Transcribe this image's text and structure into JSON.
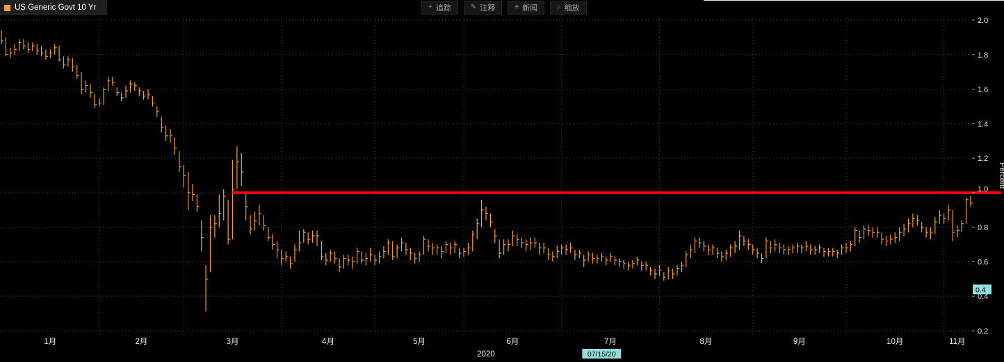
{
  "header": {
    "series_title": "US Generic Govt 10 Yr",
    "series_color": "#f2a23c"
  },
  "toolbar": {
    "items": [
      {
        "name": "track",
        "icon_name": "move-cross-icon",
        "icon": "+",
        "label": "追踪"
      },
      {
        "name": "annotate",
        "icon_name": "pencil-icon",
        "icon": "✎",
        "label": "注释"
      },
      {
        "name": "news",
        "icon_name": "news-lines-icon",
        "icon": "≡",
        "label": "新闻"
      },
      {
        "name": "zoom",
        "icon_name": "magnifier-icon",
        "icon": "⌕",
        "label": "缩放"
      }
    ]
  },
  "chart_data": {
    "type": "bar",
    "subtype": "hlc-ohlc-daily",
    "title": "US Generic Govt 10 Yr",
    "ylabel": "Percent",
    "ylim": [
      0.2,
      2.0
    ],
    "grid": true,
    "y_ticks": [
      "2.0",
      "1.8",
      "1.6",
      "1.4",
      "1.2",
      "1.0",
      "0.8",
      "0.6",
      "0.4",
      "0.2"
    ],
    "x_tick_labels": [
      "1月",
      "2月",
      "3月",
      "4月",
      "5月",
      "6月",
      "7月",
      "8月",
      "9月",
      "10月",
      "11月"
    ],
    "year_label": "2020",
    "month_start_indices": [
      0,
      22,
      41,
      63,
      84,
      104,
      126,
      148,
      169,
      190,
      212
    ],
    "series_color": "#f2a23c",
    "red_line": {
      "value": 1.0,
      "start_index": 52,
      "color": "#ff0000"
    },
    "cursor": {
      "x_index": 135,
      "x_label": "07/15/20",
      "y_value": 0.44,
      "y_label": "0.4",
      "highlight_color": "#95dcdc"
    },
    "bars_hlc": [
      [
        1.94,
        1.86,
        1.88
      ],
      [
        1.9,
        1.79,
        1.8
      ],
      [
        1.84,
        1.78,
        1.81
      ],
      [
        1.86,
        1.8,
        1.83
      ],
      [
        1.89,
        1.82,
        1.87
      ],
      [
        1.89,
        1.83,
        1.85
      ],
      [
        1.87,
        1.81,
        1.83
      ],
      [
        1.87,
        1.82,
        1.85
      ],
      [
        1.86,
        1.8,
        1.82
      ],
      [
        1.85,
        1.79,
        1.81
      ],
      [
        1.83,
        1.77,
        1.79
      ],
      [
        1.83,
        1.78,
        1.81
      ],
      [
        1.86,
        1.8,
        1.84
      ],
      [
        1.85,
        1.76,
        1.77
      ],
      [
        1.79,
        1.72,
        1.74
      ],
      [
        1.79,
        1.73,
        1.77
      ],
      [
        1.78,
        1.7,
        1.73
      ],
      [
        1.74,
        1.66,
        1.68
      ],
      [
        1.7,
        1.57,
        1.6
      ],
      [
        1.65,
        1.58,
        1.62
      ],
      [
        1.63,
        1.55,
        1.58
      ],
      [
        1.57,
        1.49,
        1.51
      ],
      [
        1.55,
        1.5,
        1.52
      ],
      [
        1.61,
        1.51,
        1.6
      ],
      [
        1.67,
        1.59,
        1.65
      ],
      [
        1.67,
        1.62,
        1.64
      ],
      [
        1.61,
        1.56,
        1.58
      ],
      [
        1.58,
        1.53,
        1.55
      ],
      [
        1.62,
        1.55,
        1.59
      ],
      [
        1.65,
        1.58,
        1.63
      ],
      [
        1.64,
        1.59,
        1.62
      ],
      [
        1.61,
        1.56,
        1.59
      ],
      [
        1.59,
        1.54,
        1.56
      ],
      [
        1.6,
        1.54,
        1.57
      ],
      [
        1.56,
        1.5,
        1.52
      ],
      [
        1.5,
        1.44,
        1.47
      ],
      [
        1.44,
        1.35,
        1.38
      ],
      [
        1.39,
        1.3,
        1.33
      ],
      [
        1.37,
        1.29,
        1.33
      ],
      [
        1.32,
        1.22,
        1.26
      ],
      [
        1.24,
        1.12,
        1.15
      ],
      [
        1.16,
        1.03,
        1.1
      ],
      [
        1.12,
        0.9,
        1.0
      ],
      [
        1.05,
        0.95,
        0.99
      ],
      [
        0.99,
        0.89,
        0.92
      ],
      [
        0.84,
        0.66,
        0.74
      ],
      [
        0.58,
        0.31,
        0.5
      ],
      [
        0.87,
        0.54,
        0.8
      ],
      [
        0.87,
        0.74,
        0.82
      ],
      [
        0.99,
        0.8,
        0.88
      ],
      [
        1.02,
        0.84,
        0.98
      ],
      [
        0.96,
        0.7,
        0.73
      ],
      [
        1.19,
        0.73,
        1.02
      ],
      [
        1.27,
        1.02,
        1.18
      ],
      [
        1.23,
        1.04,
        1.12
      ],
      [
        1.01,
        0.84,
        0.92
      ],
      [
        0.87,
        0.76,
        0.79
      ],
      [
        0.89,
        0.78,
        0.84
      ],
      [
        0.93,
        0.81,
        0.88
      ],
      [
        0.87,
        0.78,
        0.81
      ],
      [
        0.8,
        0.72,
        0.74
      ],
      [
        0.76,
        0.67,
        0.7
      ],
      [
        0.72,
        0.62,
        0.67
      ],
      [
        0.67,
        0.58,
        0.62
      ],
      [
        0.66,
        0.6,
        0.63
      ],
      [
        0.63,
        0.56,
        0.59
      ],
      [
        0.7,
        0.6,
        0.67
      ],
      [
        0.78,
        0.66,
        0.71
      ],
      [
        0.79,
        0.71,
        0.77
      ],
      [
        0.77,
        0.7,
        0.73
      ],
      [
        0.78,
        0.71,
        0.75
      ],
      [
        0.78,
        0.69,
        0.75
      ],
      [
        0.72,
        0.61,
        0.63
      ],
      [
        0.65,
        0.58,
        0.61
      ],
      [
        0.67,
        0.6,
        0.65
      ],
      [
        0.66,
        0.59,
        0.62
      ],
      [
        0.62,
        0.54,
        0.57
      ],
      [
        0.64,
        0.56,
        0.62
      ],
      [
        0.64,
        0.58,
        0.61
      ],
      [
        0.63,
        0.56,
        0.6
      ],
      [
        0.68,
        0.59,
        0.66
      ],
      [
        0.66,
        0.59,
        0.61
      ],
      [
        0.65,
        0.58,
        0.62
      ],
      [
        0.68,
        0.6,
        0.64
      ],
      [
        0.64,
        0.58,
        0.61
      ],
      [
        0.66,
        0.59,
        0.63
      ],
      [
        0.69,
        0.62,
        0.66
      ],
      [
        0.73,
        0.64,
        0.71
      ],
      [
        0.72,
        0.61,
        0.63
      ],
      [
        0.7,
        0.62,
        0.68
      ],
      [
        0.74,
        0.66,
        0.71
      ],
      [
        0.71,
        0.64,
        0.67
      ],
      [
        0.68,
        0.61,
        0.65
      ],
      [
        0.65,
        0.59,
        0.62
      ],
      [
        0.66,
        0.6,
        0.64
      ],
      [
        0.75,
        0.64,
        0.73
      ],
      [
        0.73,
        0.66,
        0.69
      ],
      [
        0.71,
        0.64,
        0.68
      ],
      [
        0.7,
        0.64,
        0.68
      ],
      [
        0.69,
        0.62,
        0.66
      ],
      [
        0.72,
        0.65,
        0.7
      ],
      [
        0.71,
        0.64,
        0.68
      ],
      [
        0.72,
        0.65,
        0.7
      ],
      [
        0.68,
        0.62,
        0.65
      ],
      [
        0.68,
        0.63,
        0.66
      ],
      [
        0.71,
        0.64,
        0.68
      ],
      [
        0.78,
        0.66,
        0.76
      ],
      [
        0.85,
        0.73,
        0.82
      ],
      [
        0.96,
        0.8,
        0.9
      ],
      [
        0.92,
        0.84,
        0.88
      ],
      [
        0.88,
        0.8,
        0.83
      ],
      [
        0.79,
        0.71,
        0.75
      ],
      [
        0.73,
        0.62,
        0.65
      ],
      [
        0.73,
        0.64,
        0.7
      ],
      [
        0.73,
        0.66,
        0.7
      ],
      [
        0.78,
        0.69,
        0.75
      ],
      [
        0.76,
        0.69,
        0.73
      ],
      [
        0.74,
        0.68,
        0.71
      ],
      [
        0.73,
        0.66,
        0.7
      ],
      [
        0.74,
        0.67,
        0.71
      ],
      [
        0.74,
        0.68,
        0.71
      ],
      [
        0.71,
        0.64,
        0.68
      ],
      [
        0.71,
        0.65,
        0.68
      ],
      [
        0.68,
        0.61,
        0.64
      ],
      [
        0.66,
        0.6,
        0.63
      ],
      [
        0.69,
        0.62,
        0.66
      ],
      [
        0.7,
        0.64,
        0.68
      ],
      [
        0.7,
        0.64,
        0.67
      ],
      [
        0.71,
        0.65,
        0.68
      ],
      [
        0.67,
        0.61,
        0.64
      ],
      [
        0.67,
        0.62,
        0.65
      ],
      [
        0.64,
        0.57,
        0.61
      ],
      [
        0.66,
        0.6,
        0.64
      ],
      [
        0.65,
        0.59,
        0.62
      ],
      [
        0.64,
        0.59,
        0.62
      ],
      [
        0.65,
        0.6,
        0.63
      ],
      [
        0.63,
        0.58,
        0.61
      ],
      [
        0.65,
        0.6,
        0.63
      ],
      [
        0.63,
        0.58,
        0.61
      ],
      [
        0.62,
        0.57,
        0.6
      ],
      [
        0.61,
        0.56,
        0.59
      ],
      [
        0.6,
        0.55,
        0.58
      ],
      [
        0.61,
        0.56,
        0.59
      ],
      [
        0.63,
        0.58,
        0.61
      ],
      [
        0.6,
        0.55,
        0.58
      ],
      [
        0.6,
        0.55,
        0.58
      ],
      [
        0.57,
        0.52,
        0.55
      ],
      [
        0.56,
        0.5,
        0.53
      ],
      [
        0.58,
        0.52,
        0.55
      ],
      [
        0.54,
        0.49,
        0.51
      ],
      [
        0.57,
        0.5,
        0.55
      ],
      [
        0.56,
        0.5,
        0.53
      ],
      [
        0.58,
        0.52,
        0.56
      ],
      [
        0.6,
        0.54,
        0.58
      ],
      [
        0.66,
        0.57,
        0.64
      ],
      [
        0.7,
        0.62,
        0.67
      ],
      [
        0.74,
        0.65,
        0.72
      ],
      [
        0.74,
        0.68,
        0.71
      ],
      [
        0.72,
        0.66,
        0.69
      ],
      [
        0.7,
        0.64,
        0.67
      ],
      [
        0.7,
        0.64,
        0.68
      ],
      [
        0.68,
        0.62,
        0.65
      ],
      [
        0.66,
        0.6,
        0.63
      ],
      [
        0.67,
        0.61,
        0.65
      ],
      [
        0.7,
        0.63,
        0.68
      ],
      [
        0.72,
        0.65,
        0.69
      ],
      [
        0.78,
        0.67,
        0.75
      ],
      [
        0.75,
        0.69,
        0.72
      ],
      [
        0.73,
        0.67,
        0.7
      ],
      [
        0.7,
        0.64,
        0.67
      ],
      [
        0.68,
        0.62,
        0.65
      ],
      [
        0.65,
        0.59,
        0.62
      ],
      [
        0.74,
        0.62,
        0.72
      ],
      [
        0.72,
        0.65,
        0.68
      ],
      [
        0.73,
        0.66,
        0.7
      ],
      [
        0.71,
        0.65,
        0.68
      ],
      [
        0.7,
        0.64,
        0.67
      ],
      [
        0.69,
        0.64,
        0.67
      ],
      [
        0.7,
        0.65,
        0.68
      ],
      [
        0.71,
        0.65,
        0.69
      ],
      [
        0.7,
        0.65,
        0.68
      ],
      [
        0.72,
        0.66,
        0.69
      ],
      [
        0.7,
        0.64,
        0.67
      ],
      [
        0.69,
        0.64,
        0.67
      ],
      [
        0.7,
        0.65,
        0.68
      ],
      [
        0.68,
        0.63,
        0.66
      ],
      [
        0.68,
        0.63,
        0.66
      ],
      [
        0.68,
        0.63,
        0.66
      ],
      [
        0.67,
        0.62,
        0.65
      ],
      [
        0.7,
        0.64,
        0.68
      ],
      [
        0.71,
        0.65,
        0.68
      ],
      [
        0.72,
        0.66,
        0.7
      ],
      [
        0.8,
        0.69,
        0.78
      ],
      [
        0.78,
        0.71,
        0.74
      ],
      [
        0.81,
        0.73,
        0.79
      ],
      [
        0.81,
        0.75,
        0.78
      ],
      [
        0.8,
        0.74,
        0.77
      ],
      [
        0.8,
        0.74,
        0.77
      ],
      [
        0.77,
        0.7,
        0.73
      ],
      [
        0.75,
        0.69,
        0.72
      ],
      [
        0.76,
        0.7,
        0.73
      ],
      [
        0.77,
        0.71,
        0.74
      ],
      [
        0.8,
        0.72,
        0.77
      ],
      [
        0.82,
        0.75,
        0.79
      ],
      [
        0.85,
        0.77,
        0.82
      ],
      [
        0.88,
        0.8,
        0.85
      ],
      [
        0.87,
        0.81,
        0.84
      ],
      [
        0.83,
        0.77,
        0.8
      ],
      [
        0.8,
        0.74,
        0.77
      ],
      [
        0.8,
        0.73,
        0.77
      ],
      [
        0.86,
        0.76,
        0.83
      ],
      [
        0.9,
        0.82,
        0.87
      ],
      [
        0.88,
        0.82,
        0.85
      ],
      [
        0.93,
        0.84,
        0.9
      ],
      [
        0.9,
        0.72,
        0.77
      ],
      [
        0.81,
        0.74,
        0.78
      ],
      [
        0.84,
        0.77,
        0.82
      ],
      [
        0.97,
        0.82,
        0.96
      ],
      [
        0.98,
        0.92,
        0.94
      ]
    ]
  }
}
